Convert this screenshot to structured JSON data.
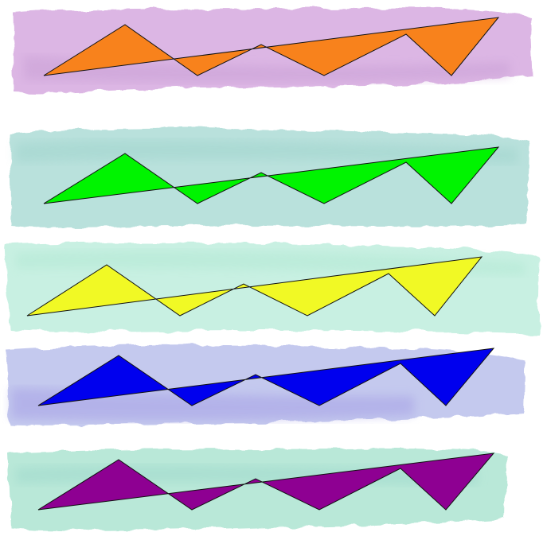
{
  "palette": {
    "background": "#ffffff",
    "outline": "#111111"
  },
  "strokes": [
    {
      "name": "stroke-lavender",
      "color": "#dcb6e4",
      "accent": "#c9a0d6"
    },
    {
      "name": "stroke-teal",
      "color": "#b9e1dc",
      "accent": "#a3d6cf"
    },
    {
      "name": "stroke-mint",
      "color": "#c8f0e2",
      "accent": "#b1e8d3"
    },
    {
      "name": "stroke-periwinkle",
      "color": "#c4c9ee",
      "accent": "#a9a4e6"
    },
    {
      "name": "stroke-seafoam",
      "color": "#b9e8d8",
      "accent": "#9fd9cc"
    }
  ],
  "shapes": [
    {
      "name": "zigzag-orange",
      "fill": "#f8821c"
    },
    {
      "name": "zigzag-green",
      "fill": "#00f400"
    },
    {
      "name": "zigzag-yellow",
      "fill": "#f1f925"
    },
    {
      "name": "zigzag-blue",
      "fill": "#0000ee"
    },
    {
      "name": "zigzag-purple",
      "fill": "#8e0092"
    }
  ]
}
